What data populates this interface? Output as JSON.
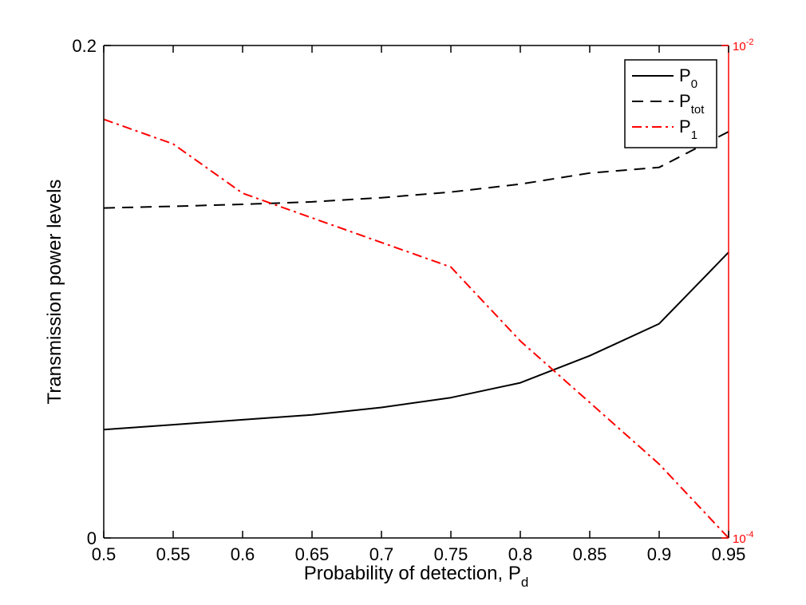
{
  "chart_data": {
    "type": "line",
    "xlabel": "Probability of detection, P",
    "xlabel_sub": "d",
    "ylabel": "Transmission power levels",
    "xlim": [
      0.5,
      0.95
    ],
    "ylim": [
      0,
      0.2
    ],
    "y2lim_log10": [
      -4,
      -2
    ],
    "x_ticks": [
      "0.5",
      "0.55",
      "0.6",
      "0.65",
      "0.7",
      "0.75",
      "0.8",
      "0.85",
      "0.9",
      "0.95"
    ],
    "y_ticks": [
      {
        "value": 0,
        "label": "0"
      },
      {
        "value": 0.2,
        "label": "0.2"
      }
    ],
    "y2_ticks": [
      {
        "log10": -4,
        "base": "10",
        "exp": "-4"
      },
      {
        "log10": -2,
        "base": "10",
        "exp": "-2"
      }
    ],
    "legend": {
      "position": "top-right",
      "entries": [
        {
          "base": "P",
          "sub": "0",
          "style": "solid",
          "color": "#000000"
        },
        {
          "base": "P",
          "sub": "tot",
          "style": "dashed",
          "color": "#000000"
        },
        {
          "base": "P",
          "sub": "1",
          "style": "dash-dot",
          "color": "#ff0000"
        }
      ]
    },
    "x": [
      0.5,
      0.55,
      0.6,
      0.65,
      0.7,
      0.75,
      0.8,
      0.85,
      0.9,
      0.95
    ],
    "series": [
      {
        "key": "p0",
        "axis": "left",
        "style": "solid",
        "color": "#000000",
        "values": [
          0.044,
          0.046,
          0.048,
          0.05,
          0.053,
          0.057,
          0.063,
          0.074,
          0.087,
          0.116
        ]
      },
      {
        "key": "ptot",
        "axis": "left",
        "style": "dashed",
        "color": "#000000",
        "values": [
          0.134,
          0.1347,
          0.1355,
          0.1365,
          0.1382,
          0.1405,
          0.1437,
          0.1482,
          0.1505,
          0.165
        ]
      },
      {
        "key": "p1",
        "axis": "right",
        "style": "dash-dot",
        "color": "#ff0000",
        "log10_values": [
          -2.3,
          -2.4,
          -2.6,
          -2.7,
          -2.8,
          -2.9,
          -3.2,
          -3.45,
          -3.7,
          -4.0
        ]
      }
    ]
  },
  "colors": {
    "axis_left": "#000000",
    "axis_right": "#ff0000"
  }
}
